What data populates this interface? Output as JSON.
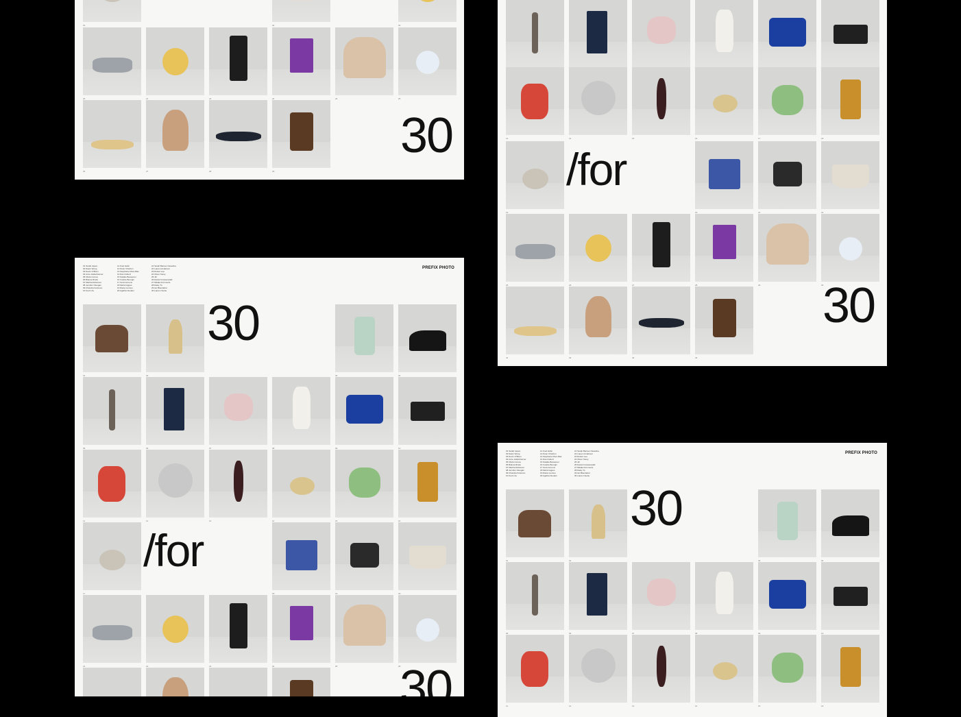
{
  "brand": "PREFIX PHOTO",
  "headline": {
    "number": "30",
    "word": "/for"
  },
  "object_names": [
    "horse",
    "whisk",
    "jar",
    "shoes",
    "fork",
    "book",
    "brooch",
    "figurine",
    "accordion",
    "cassette",
    "candy",
    "pulley",
    "hair",
    "egg",
    "parrots",
    "bottle",
    "rock",
    "cube",
    "dispenser",
    "basket",
    "binoculars",
    "shell",
    "vhs",
    "purple-book",
    "elephant",
    "badge",
    "twist",
    "idol",
    "skateboard",
    "ship"
  ],
  "credits": {
    "col1": [
      "01 Sarah Aspen",
      "02 Dawn Wong",
      "03 Devin O'Brien",
      "04 Anne Hollenheimer",
      "05 Olivia Correa",
      "06 Bianca Rinde",
      "07 Martha Robinson",
      "08 Jennifer Olesgan",
      "09 Chandra Kulsroon",
      "10 Kevin Au"
    ],
    "col2": [
      "11 Fred Hahn",
      "12 Peter Chariton",
      "13 Stephanie Moor-Bas",
      "14 Dan Fullerd",
      "15 Natalie Bessemer",
      "16 Colette Bourgin",
      "17 Scott Armens",
      "18 Mehul Agpes",
      "19 Diana Lumieu",
      "20 Agatha Cleuder"
    ],
    "col3": [
      "21 Sarah Barnes Ossedine",
      "22 Lauren Anderson",
      "23 Robert Lee",
      "24 Oliver Sorey",
      "25 Jill",
      "26 Daniel Grosserwald",
      "27 Mikala Krimmerts",
      "28 Daisy To",
      "29 Ian Blendarter",
      "30 Lauren Sente"
    ]
  }
}
